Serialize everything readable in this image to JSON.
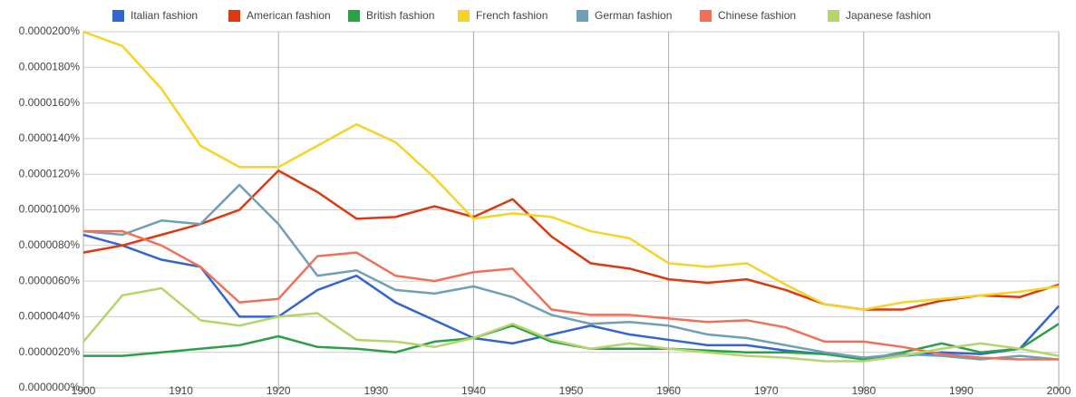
{
  "chart_data": {
    "type": "line",
    "x": [
      1900,
      1904,
      1908,
      1912,
      1916,
      1920,
      1924,
      1928,
      1932,
      1936,
      1940,
      1944,
      1948,
      1952,
      1956,
      1960,
      1964,
      1968,
      1972,
      1976,
      1980,
      1984,
      1988,
      1992,
      1996,
      2000
    ],
    "series": [
      {
        "name": "Italian fashion",
        "color": "#3366cc",
        "values": [
          8.6e-06,
          8e-06,
          7.2e-06,
          6.8e-06,
          4e-06,
          4e-06,
          5.5e-06,
          6.3e-06,
          4.8e-06,
          3.8e-06,
          2.8e-06,
          2.5e-06,
          3e-06,
          3.5e-06,
          3e-06,
          2.7e-06,
          2.4e-06,
          2.4e-06,
          2.1e-06,
          1.9e-06,
          1.7e-06,
          1.8e-06,
          2e-06,
          1.9e-06,
          2.2e-06,
          4.6e-06
        ]
      },
      {
        "name": "American fashion",
        "color": "#dc3912",
        "values": [
          7.6e-06,
          8e-06,
          8.6e-06,
          9.2e-06,
          1e-05,
          1.22e-05,
          1.1e-05,
          9.5e-06,
          9.6e-06,
          1.02e-05,
          9.6e-06,
          1.06e-05,
          8.5e-06,
          7e-06,
          6.7e-06,
          6.1e-06,
          5.9e-06,
          6.1e-06,
          5.5e-06,
          4.7e-06,
          4.4e-06,
          4.4e-06,
          4.9e-06,
          5.2e-06,
          5.1e-06,
          5.8e-06
        ]
      },
      {
        "name": "British fashion",
        "color": "#2ca048",
        "values": [
          1.8e-06,
          1.8e-06,
          2e-06,
          2.2e-06,
          2.4e-06,
          2.9e-06,
          2.3e-06,
          2.2e-06,
          2e-06,
          2.6e-06,
          2.8e-06,
          3.5e-06,
          2.6e-06,
          2.2e-06,
          2.2e-06,
          2.2e-06,
          2.1e-06,
          2e-06,
          2e-06,
          1.9e-06,
          1.6e-06,
          2e-06,
          2.5e-06,
          2e-06,
          2.2e-06,
          3.6e-06
        ]
      },
      {
        "name": "French fashion",
        "color": "#f5d327",
        "values": [
          2e-05,
          1.92e-05,
          1.68e-05,
          1.36e-05,
          1.24e-05,
          1.24e-05,
          1.36e-05,
          1.48e-05,
          1.38e-05,
          1.18e-05,
          9.5e-06,
          9.8e-06,
          9.6e-06,
          8.8e-06,
          8.4e-06,
          7e-06,
          6.8e-06,
          7e-06,
          5.8e-06,
          4.7e-06,
          4.4e-06,
          4.8e-06,
          5e-06,
          5.2e-06,
          5.4e-06,
          5.7e-06
        ]
      },
      {
        "name": "German fashion",
        "color": "#6fa0b4",
        "values": [
          8.8e-06,
          8.6e-06,
          9.4e-06,
          9.2e-06,
          1.14e-05,
          9.2e-06,
          6.3e-06,
          6.6e-06,
          5.5e-06,
          5.3e-06,
          5.7e-06,
          5.1e-06,
          4.1e-06,
          3.6e-06,
          3.7e-06,
          3.5e-06,
          3e-06,
          2.8e-06,
          2.4e-06,
          2e-06,
          1.7e-06,
          1.9e-06,
          1.8e-06,
          1.6e-06,
          1.8e-06,
          1.6e-06
        ]
      },
      {
        "name": "Chinese fashion",
        "color": "#f0715a",
        "values": [
          8.8e-06,
          8.8e-06,
          8e-06,
          6.8e-06,
          4.8e-06,
          5e-06,
          7.4e-06,
          7.6e-06,
          6.3e-06,
          6e-06,
          6.5e-06,
          6.7e-06,
          4.4e-06,
          4.1e-06,
          4.1e-06,
          3.9e-06,
          3.7e-06,
          3.8e-06,
          3.4e-06,
          2.6e-06,
          2.6e-06,
          2.3e-06,
          1.9e-06,
          1.7e-06,
          1.6e-06,
          1.6e-06
        ]
      },
      {
        "name": "Japanese fashion",
        "color": "#b4d56a",
        "values": [
          2.6e-06,
          5.2e-06,
          5.6e-06,
          3.8e-06,
          3.5e-06,
          4e-06,
          4.2e-06,
          2.7e-06,
          2.6e-06,
          2.3e-06,
          2.8e-06,
          3.6e-06,
          2.7e-06,
          2.2e-06,
          2.5e-06,
          2.2e-06,
          2e-06,
          1.8e-06,
          1.7e-06,
          1.5e-06,
          1.5e-06,
          1.8e-06,
          2.2e-06,
          2.5e-06,
          2.2e-06,
          1.8e-06
        ]
      }
    ],
    "xlim": [
      1900,
      2000
    ],
    "xticks": [
      1900,
      1910,
      1920,
      1930,
      1940,
      1950,
      1960,
      1970,
      1980,
      1990,
      2000
    ],
    "xgrid": [
      1920,
      1940,
      1960,
      1980
    ],
    "ylim": [
      0,
      2e-05
    ],
    "yticks": [
      {
        "value": 0,
        "label": "0.0000000%"
      },
      {
        "value": 2e-06,
        "label": "0.0000020%"
      },
      {
        "value": 4e-06,
        "label": "0.0000040%"
      },
      {
        "value": 6e-06,
        "label": "0.0000060%"
      },
      {
        "value": 8e-06,
        "label": "0.0000080%"
      },
      {
        "value": 1e-05,
        "label": "0.0000100%"
      },
      {
        "value": 1.2e-05,
        "label": "0.0000120%"
      },
      {
        "value": 1.4e-05,
        "label": "0.0000140%"
      },
      {
        "value": 1.6e-05,
        "label": "0.0000160%"
      },
      {
        "value": 1.8e-05,
        "label": "0.0000180%"
      },
      {
        "value": 2e-05,
        "label": "0.0000200%"
      }
    ],
    "grid": true,
    "legend": "top"
  }
}
